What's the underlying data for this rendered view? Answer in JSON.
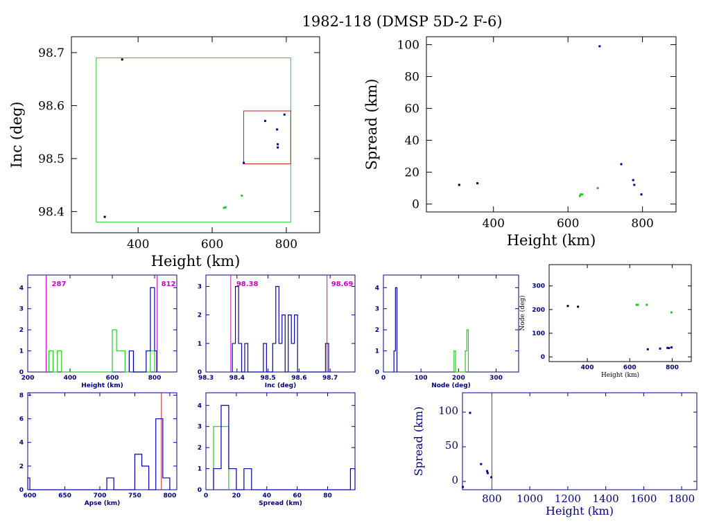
{
  "title": "1982-118 (DMSP 5D-2 F-6)",
  "colors": {
    "blue": "#0000aa",
    "green": "#22cc22",
    "black": "#000000",
    "red": "#bb2222",
    "magenta": "#cc00cc",
    "navy": "#000080"
  },
  "chart_data": [
    {
      "id": "inc_vs_height",
      "type": "scatter",
      "xlabel": "Height (km)",
      "ylabel": "Inc (deg)",
      "xlim": [
        220,
        890
      ],
      "ylim": [
        98.36,
        98.73
      ],
      "xticks": [
        400,
        600,
        800
      ],
      "yticks": [
        98.4,
        98.5,
        98.6,
        98.7
      ],
      "series": [
        {
          "color": "black",
          "points": [
            [
              310,
              98.39
            ],
            [
              357,
              98.687
            ]
          ]
        },
        {
          "color": "green",
          "points": [
            [
              632,
              98.407
            ],
            [
              636,
              98.408
            ],
            [
              680,
              98.43
            ]
          ]
        },
        {
          "color": "blue",
          "points": [
            [
              685,
              98.492
            ],
            [
              743,
              98.571
            ],
            [
              775,
              98.555
            ],
            [
              777,
              98.527
            ],
            [
              777,
              98.521
            ],
            [
              795,
              98.583
            ]
          ]
        }
      ],
      "boxes": [
        {
          "color": "green",
          "x": [
            287,
            812
          ],
          "y": [
            98.38,
            98.69
          ]
        },
        {
          "color": "red",
          "x": [
            685,
            812
          ],
          "y": [
            98.49,
            98.59
          ]
        }
      ]
    },
    {
      "id": "spread_vs_height",
      "type": "scatter",
      "xlabel": "Height (km)",
      "ylabel": "Spread (km)",
      "xlim": [
        220,
        890
      ],
      "ylim": [
        -5,
        105
      ],
      "xticks": [
        400,
        600,
        800
      ],
      "yticks": [
        0,
        20,
        40,
        60,
        80,
        100
      ],
      "series": [
        {
          "color": "black",
          "points": [
            [
              308,
              12
            ],
            [
              357,
              13
            ]
          ]
        },
        {
          "color": "green",
          "points": [
            [
              632,
              5
            ],
            [
              634,
              6
            ],
            [
              638,
              6
            ],
            [
              680,
              10
            ],
            [
              797,
              6
            ]
          ]
        },
        {
          "color": "blue",
          "points": [
            [
              685,
              99
            ],
            [
              743,
              25
            ],
            [
              775,
              15
            ],
            [
              778,
              12
            ],
            [
              797,
              6
            ]
          ]
        }
      ]
    },
    {
      "id": "hist_height",
      "type": "bar",
      "xlabel": "Height (km)",
      "xlim": [
        200,
        905
      ],
      "ylim": [
        0,
        4.6
      ],
      "xticks": [
        200,
        400,
        600,
        800
      ],
      "yticks": [
        0,
        1,
        2,
        3,
        4
      ],
      "vlines": [
        {
          "x": 287,
          "color": "magenta",
          "label": "287"
        },
        {
          "x": 812,
          "color": "magenta",
          "label": "812"
        }
      ],
      "series": [
        {
          "color": "green",
          "bins": [
            [
              300,
              320,
              1
            ],
            [
              340,
              360,
              1
            ],
            [
              600,
              620,
              2
            ],
            [
              620,
              660,
              1
            ],
            [
              660,
              680,
              0
            ],
            [
              680,
              700,
              1
            ],
            [
              700,
              780,
              0
            ],
            [
              780,
              800,
              1
            ]
          ]
        },
        {
          "color": "blue",
          "bins": [
            [
              680,
              700,
              1
            ],
            [
              700,
              760,
              0
            ],
            [
              760,
              780,
              1
            ],
            [
              780,
              800,
              4
            ],
            [
              800,
              810,
              1
            ]
          ]
        }
      ]
    },
    {
      "id": "hist_inc",
      "type": "bar",
      "xlabel": "Inc (deg)",
      "xlim": [
        98.3,
        98.78
      ],
      "ylim": [
        0,
        3.4
      ],
      "xticks": [
        98.3,
        98.4,
        98.5,
        98.6,
        98.7
      ],
      "yticks": [
        0,
        1,
        2,
        3
      ],
      "vlines": [
        {
          "x": 98.38,
          "color": "magenta",
          "label": "98.38"
        },
        {
          "x": 98.69,
          "color": "magenta",
          "label": "98.69"
        }
      ],
      "series": [
        {
          "color": "blue",
          "bins": [
            [
              98.385,
              98.395,
              1
            ],
            [
              98.395,
              98.405,
              3
            ],
            [
              98.405,
              98.415,
              1
            ],
            [
              98.425,
              98.435,
              1
            ],
            [
              98.485,
              98.495,
              1
            ],
            [
              98.515,
              98.525,
              1
            ],
            [
              98.525,
              98.535,
              3
            ],
            [
              98.535,
              98.545,
              1
            ],
            [
              98.545,
              98.555,
              2
            ],
            [
              98.565,
              98.575,
              2
            ],
            [
              98.575,
              98.585,
              1
            ],
            [
              98.585,
              98.595,
              2
            ],
            [
              98.685,
              98.695,
              1
            ]
          ]
        }
      ]
    },
    {
      "id": "hist_node",
      "type": "bar",
      "xlabel": "Node (deg)",
      "xlim": [
        0,
        360
      ],
      "ylim": [
        0,
        4.6
      ],
      "xticks": [
        0,
        100,
        200,
        300
      ],
      "yticks": [
        0,
        1,
        2,
        3,
        4
      ],
      "series": [
        {
          "color": "blue",
          "bins": [
            [
              28,
              32,
              1
            ],
            [
              32,
              36,
              4
            ]
          ]
        },
        {
          "color": "green",
          "bins": [
            [
              188,
              192,
              1
            ],
            [
              218,
              222,
              1
            ],
            [
              222,
              226,
              2
            ]
          ]
        }
      ]
    },
    {
      "id": "node_vs_height",
      "type": "scatter",
      "xlabel": "Height (km)",
      "ylabel": "Node (deg)",
      "xlim": [
        220,
        890
      ],
      "ylim": [
        -20,
        390
      ],
      "xticks": [
        400,
        600,
        800
      ],
      "yticks": [
        0,
        100,
        200,
        300
      ],
      "series": [
        {
          "color": "black",
          "points": [
            [
              308,
              215
            ],
            [
              356,
              212
            ]
          ]
        },
        {
          "color": "green",
          "points": [
            [
              632,
              220
            ],
            [
              638,
              220
            ],
            [
              680,
              220
            ],
            [
              797,
              188
            ]
          ]
        },
        {
          "color": "blue",
          "points": [
            [
              685,
              32
            ],
            [
              743,
              35
            ],
            [
              778,
              38
            ],
            [
              785,
              37
            ],
            [
              797,
              40
            ]
          ]
        }
      ]
    },
    {
      "id": "hist_apse",
      "type": "bar",
      "xlabel": "Apse (km)",
      "xlim": [
        597,
        810
      ],
      "ylim": [
        0,
        8.2
      ],
      "xticks": [
        600,
        650,
        700,
        750,
        800
      ],
      "yticks": [
        0,
        2,
        4,
        6,
        8
      ],
      "vlines": [
        {
          "x": 788,
          "color": "red"
        }
      ],
      "series": [
        {
          "color": "blue",
          "bins": [
            [
              597,
              600,
              1
            ],
            [
              710,
              720,
              1
            ],
            [
              750,
              760,
              3
            ],
            [
              760,
              770,
              2
            ],
            [
              770,
              780,
              0
            ],
            [
              780,
              790,
              6
            ],
            [
              790,
              800,
              1
            ]
          ]
        }
      ]
    },
    {
      "id": "hist_spread",
      "type": "bar",
      "xlabel": "Spread (km)",
      "xlim": [
        0,
        98
      ],
      "ylim": [
        0,
        4.6
      ],
      "xticks": [
        0,
        20,
        40,
        60,
        80
      ],
      "yticks": [
        0,
        1,
        2,
        3,
        4
      ],
      "series": [
        {
          "color": "green",
          "bins": [
            [
              5,
              10,
              3
            ],
            [
              10,
              15,
              3
            ]
          ]
        },
        {
          "color": "blue",
          "bins": [
            [
              5,
              10,
              1
            ],
            [
              10,
              15,
              4
            ],
            [
              15,
              20,
              1
            ],
            [
              25,
              30,
              1
            ],
            [
              95,
              98,
              1
            ]
          ]
        }
      ]
    },
    {
      "id": "spread_vs_height_wide",
      "type": "scatter",
      "xlabel": "Height (km)",
      "ylabel": "Spread (km)",
      "xlim": [
        645,
        1880
      ],
      "ylim": [
        -12,
        128
      ],
      "xticks": [
        800,
        1000,
        1200,
        1400,
        1600,
        1800
      ],
      "yticks": [
        0,
        50,
        100
      ],
      "vlines": [
        {
          "x": 800,
          "color": "red"
        }
      ],
      "series": [
        {
          "color": "blue",
          "points": [
            [
              685,
              99
            ],
            [
              743,
              25
            ],
            [
              775,
              15
            ],
            [
              778,
              12
            ],
            [
              797,
              6
            ],
            [
              647,
              -8
            ]
          ]
        }
      ]
    }
  ]
}
